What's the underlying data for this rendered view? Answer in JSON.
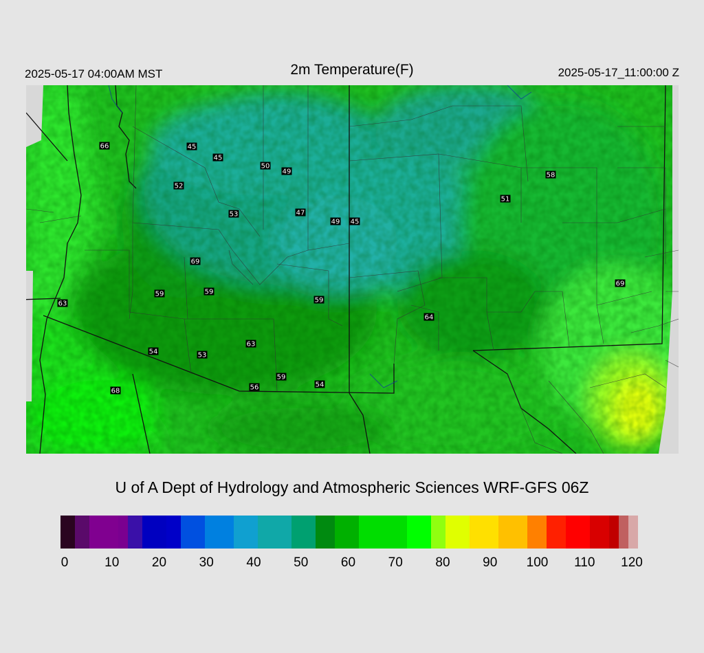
{
  "header": {
    "local_time": "2025-05-17 04:00AM MST",
    "title": "2m Temperature(F)",
    "utc_time": "2025-05-17_11:00:00 Z"
  },
  "credit": "U of A Dept of Hydrology and Atmospheric Sciences WRF-GFS 06Z",
  "colorbar": {
    "min": 0,
    "max": 120,
    "ticks": [
      "0",
      "10",
      "20",
      "30",
      "40",
      "50",
      "60",
      "70",
      "80",
      "90",
      "100",
      "110",
      "120"
    ],
    "stops": [
      {
        "value": 0,
        "color": "#2a0420"
      },
      {
        "value": 3,
        "color": "#5a0a6a"
      },
      {
        "value": 6,
        "color": "#800090"
      },
      {
        "value": 12,
        "color": "#7a0090"
      },
      {
        "value": 14,
        "color": "#3a10a8"
      },
      {
        "value": 17,
        "color": "#0000c0"
      },
      {
        "value": 22,
        "color": "#0000c8"
      },
      {
        "value": 25,
        "color": "#0050e0"
      },
      {
        "value": 30,
        "color": "#0080e0"
      },
      {
        "value": 36,
        "color": "#10a0d0"
      },
      {
        "value": 41,
        "color": "#10a8a8"
      },
      {
        "value": 48,
        "color": "#00a070"
      },
      {
        "value": 53,
        "color": "#008a10"
      },
      {
        "value": 57,
        "color": "#00b000"
      },
      {
        "value": 62,
        "color": "#00dd00"
      },
      {
        "value": 72,
        "color": "#00ff00"
      },
      {
        "value": 77,
        "color": "#90ff10"
      },
      {
        "value": 80,
        "color": "#e0ff00"
      },
      {
        "value": 85,
        "color": "#ffe000"
      },
      {
        "value": 91,
        "color": "#ffc000"
      },
      {
        "value": 97,
        "color": "#ff8000"
      },
      {
        "value": 101,
        "color": "#ff2000"
      },
      {
        "value": 105,
        "color": "#ff0000"
      },
      {
        "value": 110,
        "color": "#d80000"
      },
      {
        "value": 114,
        "color": "#c00000"
      },
      {
        "value": 116,
        "color": "#c06060"
      },
      {
        "value": 118,
        "color": "#d8a8a8"
      },
      {
        "value": 120,
        "color": "#dcdcdc"
      }
    ]
  },
  "stations": [
    {
      "label": "66",
      "value": 66
    },
    {
      "label": "45",
      "value": 45
    },
    {
      "label": "45",
      "value": 45
    },
    {
      "label": "50",
      "value": 50
    },
    {
      "label": "49",
      "value": 49
    },
    {
      "label": "52",
      "value": 52
    },
    {
      "label": "53",
      "value": 53
    },
    {
      "label": "47",
      "value": 47
    },
    {
      "label": "49",
      "value": 49
    },
    {
      "label": "45",
      "value": 45
    },
    {
      "label": "58",
      "value": 58
    },
    {
      "label": "51",
      "value": 51
    },
    {
      "label": "69",
      "value": 69
    },
    {
      "label": "59",
      "value": 59
    },
    {
      "label": "59",
      "value": 59
    },
    {
      "label": "63",
      "value": 63
    },
    {
      "label": "59",
      "value": 59
    },
    {
      "label": "64",
      "value": 64
    },
    {
      "label": "69",
      "value": 69
    },
    {
      "label": "63",
      "value": 63
    },
    {
      "label": "54",
      "value": 54
    },
    {
      "label": "53",
      "value": 53
    },
    {
      "label": "59",
      "value": 59
    },
    {
      "label": "56",
      "value": 56
    },
    {
      "label": "54",
      "value": 54
    },
    {
      "label": "68",
      "value": 68
    }
  ]
}
